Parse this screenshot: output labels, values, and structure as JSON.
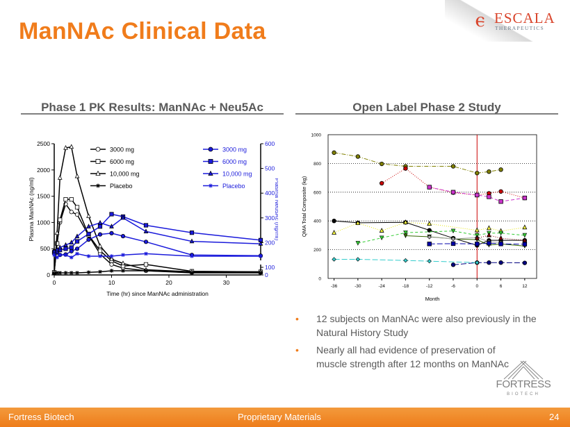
{
  "title": "ManNAc Clinical Data",
  "logo": {
    "name": "ESCALA",
    "sub": "THERAPEUTICS"
  },
  "sections": {
    "left": "Phase 1 PK Results: ManNAc + Neu5Ac",
    "right": "Open Label Phase 2 Study"
  },
  "bullets": [
    "12 subjects on ManNAc were also previously in the Natural History Study",
    "Nearly all had evidence of preservation of muscle strength after 12 months on ManNAc"
  ],
  "fortress_logo": {
    "name": "FORTRESS",
    "sub": "BIOTECH"
  },
  "footer": {
    "left": "Fortress Biotech",
    "center": "Proprietary Materials",
    "page": "24"
  },
  "chart_data": [
    {
      "type": "line",
      "xlabel": "Time (hr) since ManNAc administration",
      "ylabel": "Plasma ManNAc (ng/ml)",
      "y2label": "Plasma Neu5Ac (ng/ml)",
      "xlim": [
        0,
        36
      ],
      "ylim": [
        0,
        2500
      ],
      "y2lim": [
        0,
        600
      ],
      "xticks": [
        0,
        10,
        20,
        30
      ],
      "yticks": [
        0,
        500,
        1000,
        1500,
        2000,
        2500
      ],
      "y2ticks": [
        0,
        100,
        200,
        300,
        400,
        500,
        600
      ],
      "x": [
        0,
        0.5,
        1,
        2,
        3,
        4,
        6,
        8,
        10,
        12,
        16,
        24,
        36
      ],
      "series": [
        {
          "name": "3000 mg",
          "axis": "left",
          "marker": "circle-open",
          "color": "#000000",
          "values": [
            50,
            600,
            1000,
            1350,
            1200,
            1150,
            750,
            400,
            200,
            130,
            80,
            50,
            50
          ]
        },
        {
          "name": "6000 mg",
          "axis": "left",
          "marker": "square-open",
          "color": "#000000",
          "values": [
            50,
            600,
            1050,
            1440,
            1440,
            1290,
            760,
            460,
            270,
            170,
            200,
            70,
            60
          ]
        },
        {
          "name": "10,000 mg",
          "axis": "left",
          "marker": "triangle-open",
          "color": "#000000",
          "values": [
            50,
            800,
            1850,
            2420,
            2440,
            1880,
            1120,
            550,
            300,
            220,
            100,
            60,
            60
          ]
        },
        {
          "name": "Placebo",
          "axis": "left",
          "marker": "star",
          "color": "#000000",
          "values": [
            30,
            40,
            40,
            40,
            40,
            40,
            50,
            60,
            80,
            80,
            80,
            40,
            40
          ]
        },
        {
          "name": "3000 mg",
          "axis": "right",
          "marker": "circle",
          "color": "#1a1adb",
          "values": [
            165,
            160,
            150,
            152,
            165,
            175,
            212,
            233,
            238,
            226,
            203,
            150,
            147
          ]
        },
        {
          "name": "6000 mg",
          "axis": "right",
          "marker": "square",
          "color": "#1a1adb",
          "values": [
            160,
            165,
            170,
            175,
            180,
            205,
            235,
            265,
            315,
            305,
            270,
            240,
            210
          ]
        },
        {
          "name": "10,000 mg",
          "axis": "right",
          "marker": "triangle",
          "color": "#1a1adb",
          "values": [
            165,
            172,
            180,
            190,
            200,
            225,
            265,
            280,
            265,
            300,
            245,
            205,
            195
          ]
        },
        {
          "name": "Placebo",
          "axis": "right",
          "marker": "star",
          "color": "#1a1adb",
          "values": [
            150,
            140,
            150,
            150,
            140,
            155,
            145,
            145,
            145,
            150,
            155,
            145,
            145
          ]
        }
      ]
    },
    {
      "type": "line",
      "xlabel": "Month",
      "ylabel": "QMA Total Composite (kg)",
      "xlim": [
        -37.5,
        15
      ],
      "ylim": [
        0,
        1000
      ],
      "xticks": [
        -36,
        -30,
        -24,
        -18,
        -12,
        -6,
        0,
        6,
        12
      ],
      "yticks": [
        0,
        200,
        400,
        600,
        800,
        1000
      ],
      "grid": "horizontal dotted",
      "reference_line_x": 0,
      "reference_color": "#cc0000",
      "series": [
        {
          "marker": "circle",
          "color": "#808000",
          "dash": "6,2,1,2",
          "points": [
            [
              -36,
              875
            ],
            [
              -30,
              848
            ],
            [
              -24,
              797
            ],
            [
              -18,
              780
            ],
            [
              -6,
              780
            ],
            [
              0,
              733
            ],
            [
              3,
              743
            ],
            [
              6,
              757
            ]
          ]
        },
        {
          "marker": "circle",
          "color": "#cc0000",
          "dash": "1,2",
          "points": [
            [
              -24,
              662
            ],
            [
              -18,
              765
            ],
            [
              -12,
              635
            ],
            [
              -6,
              597
            ],
            [
              0,
              580
            ],
            [
              3,
              592
            ],
            [
              6,
              605
            ],
            [
              12,
              560
            ]
          ]
        },
        {
          "marker": "square",
          "color": "#cc33cc",
          "dash": "5,3",
          "points": [
            [
              -12,
              635
            ],
            [
              -6,
              600
            ],
            [
              0,
              580
            ],
            [
              3,
              568
            ],
            [
              6,
              535
            ],
            [
              12,
              560
            ]
          ]
        },
        {
          "marker": "circle",
          "color": "#000000",
          "dash": "",
          "points": [
            [
              -36,
              400
            ],
            [
              -30,
              387
            ],
            [
              -18,
              390
            ],
            [
              -12,
              335
            ],
            [
              -6,
              280
            ],
            [
              0,
              230
            ],
            [
              3,
              265
            ],
            [
              6,
              265
            ],
            [
              12,
              265
            ]
          ]
        },
        {
          "marker": "triangle",
          "color": "#ffff40",
          "dash": "1,2",
          "points": [
            [
              -36,
              318
            ],
            [
              -30,
              385
            ],
            [
              -24,
              332
            ],
            [
              -18,
              390
            ],
            [
              -12,
              380
            ],
            [
              0,
              335
            ],
            [
              3,
              350
            ],
            [
              6,
              330
            ],
            [
              12,
              355
            ]
          ]
        },
        {
          "marker": "triangle-down",
          "color": "#33cc33",
          "dash": "4,3",
          "points": [
            [
              -30,
              245
            ],
            [
              -24,
              282
            ],
            [
              -18,
              318
            ],
            [
              -6,
              330
            ],
            [
              0,
              300
            ],
            [
              3,
              315
            ],
            [
              6,
              315
            ],
            [
              12,
              300
            ]
          ]
        },
        {
          "marker": "triangle-down",
          "color": "#336600",
          "dash": "",
          "points": [
            [
              -18,
              297
            ],
            [
              -12,
              290
            ],
            [
              -6,
              275
            ],
            [
              0,
              270
            ],
            [
              3,
              232
            ],
            [
              6,
              240
            ],
            [
              12,
              225
            ]
          ]
        },
        {
          "marker": "diamond",
          "color": "#aaaaaa",
          "dash": "",
          "points": [
            [
              -12,
              288
            ],
            [
              -6,
              275
            ],
            [
              0,
              285
            ],
            [
              3,
              255
            ],
            [
              6,
              250
            ]
          ]
        },
        {
          "marker": "triangle",
          "color": "#800000",
          "dash": "1,2",
          "points": [
            [
              0,
              280
            ],
            [
              3,
              300
            ],
            [
              6,
              280
            ],
            [
              12,
              265
            ]
          ]
        },
        {
          "marker": "square",
          "color": "#0000aa",
          "dash": "8,3",
          "points": [
            [
              -12,
              240
            ],
            [
              -6,
              242
            ],
            [
              0,
              240
            ],
            [
              3,
              245
            ],
            [
              6,
              240
            ],
            [
              12,
              238
            ]
          ]
        },
        {
          "marker": "circle",
          "color": "#000080",
          "dash": "8,3",
          "points": [
            [
              -6,
              95
            ],
            [
              0,
              110
            ],
            [
              3,
              110
            ],
            [
              6,
              110
            ],
            [
              12,
              108
            ]
          ]
        },
        {
          "marker": "diamond",
          "color": "#33cccc",
          "dash": "8,3",
          "points": [
            [
              -36,
              133
            ],
            [
              -30,
              133
            ],
            [
              -18,
              125
            ],
            [
              -12,
              120
            ],
            [
              0,
              110
            ]
          ]
        }
      ]
    }
  ]
}
